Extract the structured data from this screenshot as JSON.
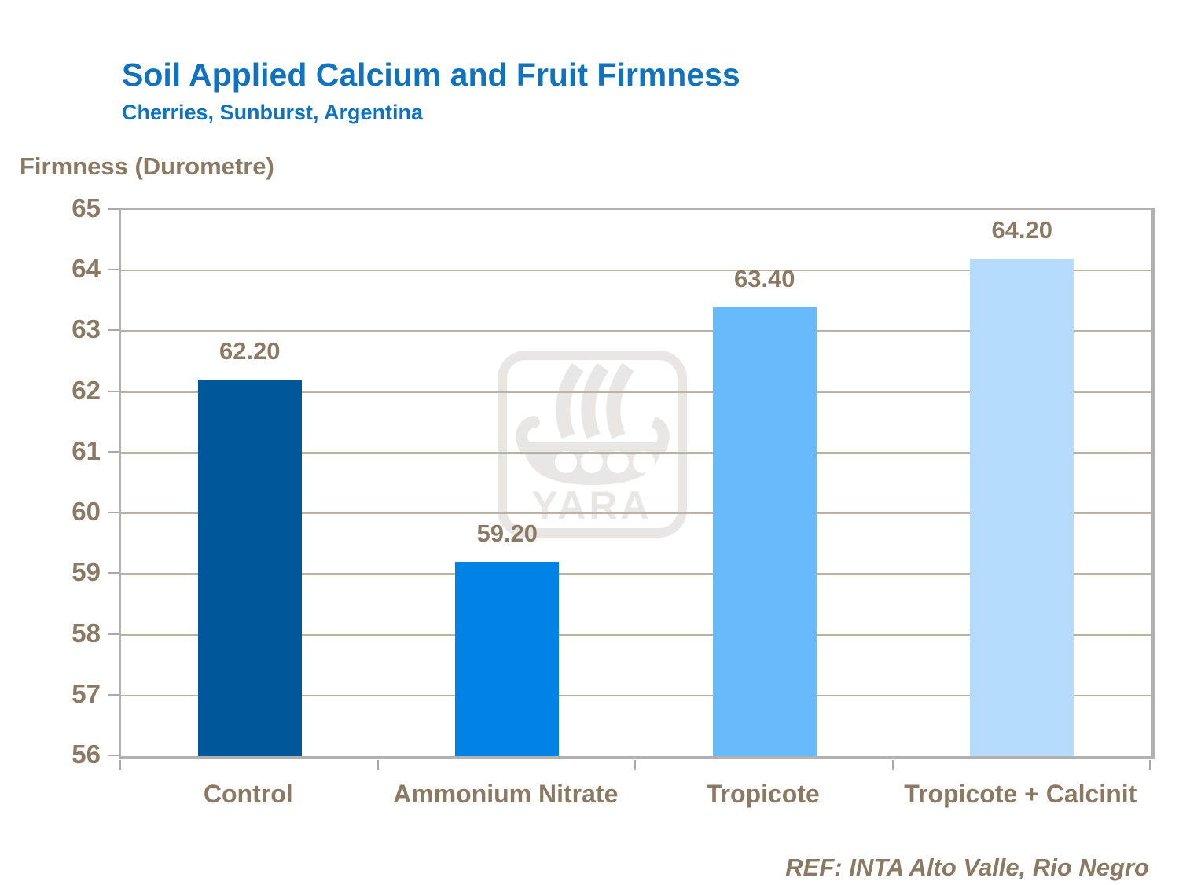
{
  "header": {
    "title": "Soil Applied Calcium and Fruit Firmness",
    "subtitle": "Cherries, Sunburst, Argentina"
  },
  "reference": "REF: INTA Alto Valle, Rio Negro",
  "watermark_text": "YARA",
  "colors": {
    "title_blue": "#1173BE",
    "text_brown": "#8A7A64",
    "gridline": "#BCB2A4",
    "axis_gray": "#A9A9A9",
    "watermark_gray": "#E9E7E5"
  },
  "chart_data": {
    "type": "bar",
    "categories": [
      "Control",
      "Ammonium Nitrate",
      "Tropicote",
      "Tropicote + Calcinit"
    ],
    "values": [
      62.2,
      59.2,
      63.4,
      64.2
    ],
    "value_labels": [
      "62.20",
      "59.20",
      "63.40",
      "64.20"
    ],
    "bar_colors": [
      "#00589B",
      "#0082E6",
      "#68BAFB",
      "#B5DCFD"
    ],
    "title": "Soil Applied Calcium and Fruit Firmness",
    "subtitle": "Cherries, Sunburst, Argentina",
    "xlabel": "",
    "ylabel": "Firmness (Durometre)",
    "ylim": [
      56,
      65
    ],
    "ytick_step": 1,
    "grid": true,
    "legend": false
  }
}
